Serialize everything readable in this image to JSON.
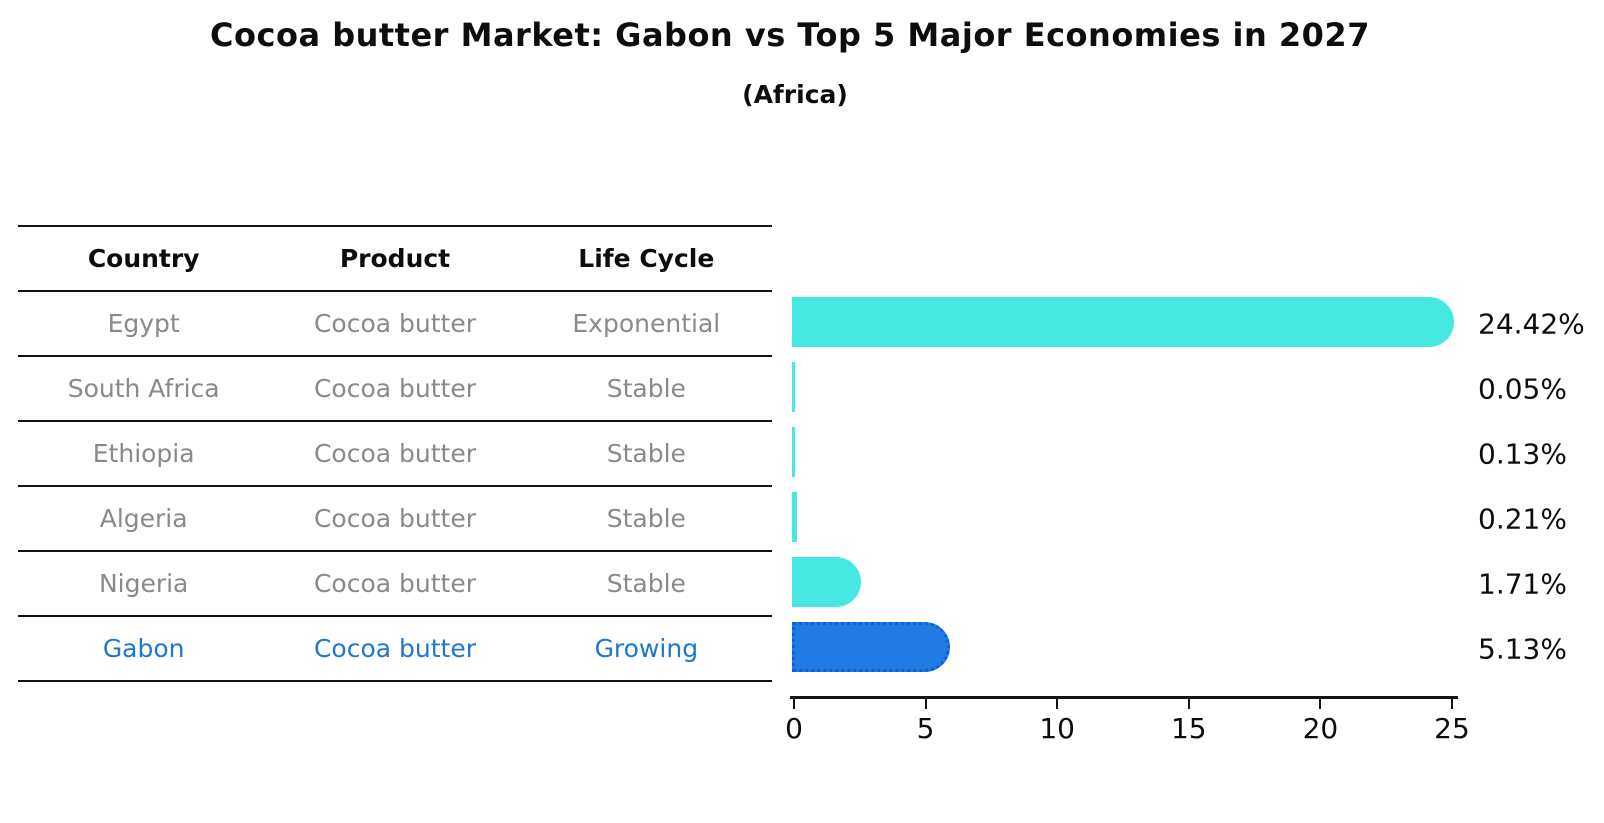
{
  "title": "Cocoa butter Market: Gabon vs Top 5 Major Economies in 2027",
  "subtitle": "(Africa)",
  "table": {
    "headers": [
      "Country",
      "Product",
      "Life Cycle"
    ],
    "rows": [
      {
        "country": "Egypt",
        "product": "Cocoa butter",
        "life_cycle": "Exponential",
        "highlight": false
      },
      {
        "country": "South Africa",
        "product": "Cocoa butter",
        "life_cycle": "Stable",
        "highlight": false
      },
      {
        "country": "Ethiopia",
        "product": "Cocoa butter",
        "life_cycle": "Stable",
        "highlight": false
      },
      {
        "country": "Algeria",
        "product": "Cocoa butter",
        "life_cycle": "Stable",
        "highlight": false
      },
      {
        "country": "Nigeria",
        "product": "Cocoa butter",
        "life_cycle": "Stable",
        "highlight": false
      },
      {
        "country": "Gabon",
        "product": "Cocoa butter",
        "life_cycle": "Growing",
        "highlight": true
      }
    ]
  },
  "chart_data": {
    "type": "bar",
    "orientation": "horizontal",
    "title": "Cocoa butter Market: Gabon vs Top 5 Major Economies in 2027",
    "subtitle": "(Africa)",
    "categories": [
      "Egypt",
      "South Africa",
      "Ethiopia",
      "Algeria",
      "Nigeria",
      "Gabon"
    ],
    "values": [
      24.42,
      0.05,
      0.13,
      0.21,
      1.71,
      5.13
    ],
    "value_labels": [
      "24.42%",
      "0.05%",
      "0.13%",
      "0.21%",
      "1.71%",
      "5.13%"
    ],
    "xlabel": "",
    "ylabel": "",
    "xlim": [
      0,
      25
    ],
    "xticks": [
      "0",
      "5",
      "10",
      "15",
      "20",
      "25"
    ],
    "grid": false,
    "legend": false,
    "bar_color": "#47e8e2",
    "highlight_color": "#207be2",
    "highlight_index": 5,
    "highlight_edge_style": "dotted"
  }
}
